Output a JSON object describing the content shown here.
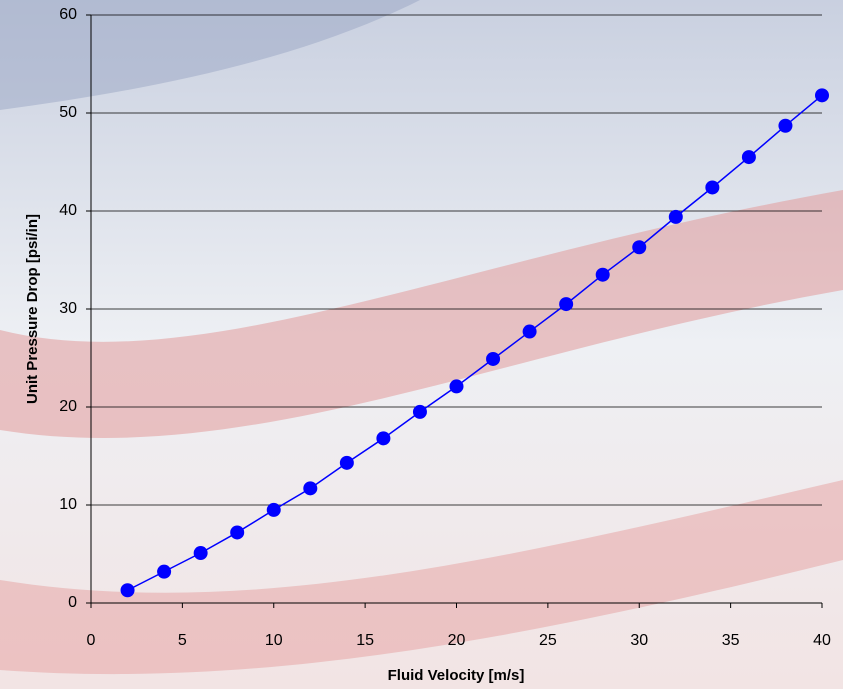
{
  "chart_data": {
    "type": "scatter",
    "x_label": "Fluid Velocity [m/s]",
    "y_label": "Unit Pressure Drop [psi/in]",
    "x": [
      2,
      4,
      6,
      8,
      10,
      12,
      14,
      16,
      18,
      20,
      22,
      24,
      26,
      28,
      30,
      32,
      34,
      36,
      38,
      40
    ],
    "series": [
      {
        "color": "#0000ff",
        "values": [
          1.3,
          3.2,
          5.1,
          7.2,
          9.5,
          11.7,
          14.3,
          16.8,
          19.5,
          22.1,
          24.9,
          27.7,
          30.5,
          33.5,
          36.3,
          39.4,
          42.4,
          45.5,
          48.7,
          51.8
        ]
      }
    ],
    "xlim": [
      0,
      40
    ],
    "xticks": [
      0,
      5,
      10,
      15,
      20,
      25,
      30,
      35,
      40
    ],
    "ylim": [
      0,
      60
    ],
    "yticks": [
      0,
      10,
      20,
      30,
      40,
      50,
      60
    ],
    "grid": true,
    "line": true
  }
}
